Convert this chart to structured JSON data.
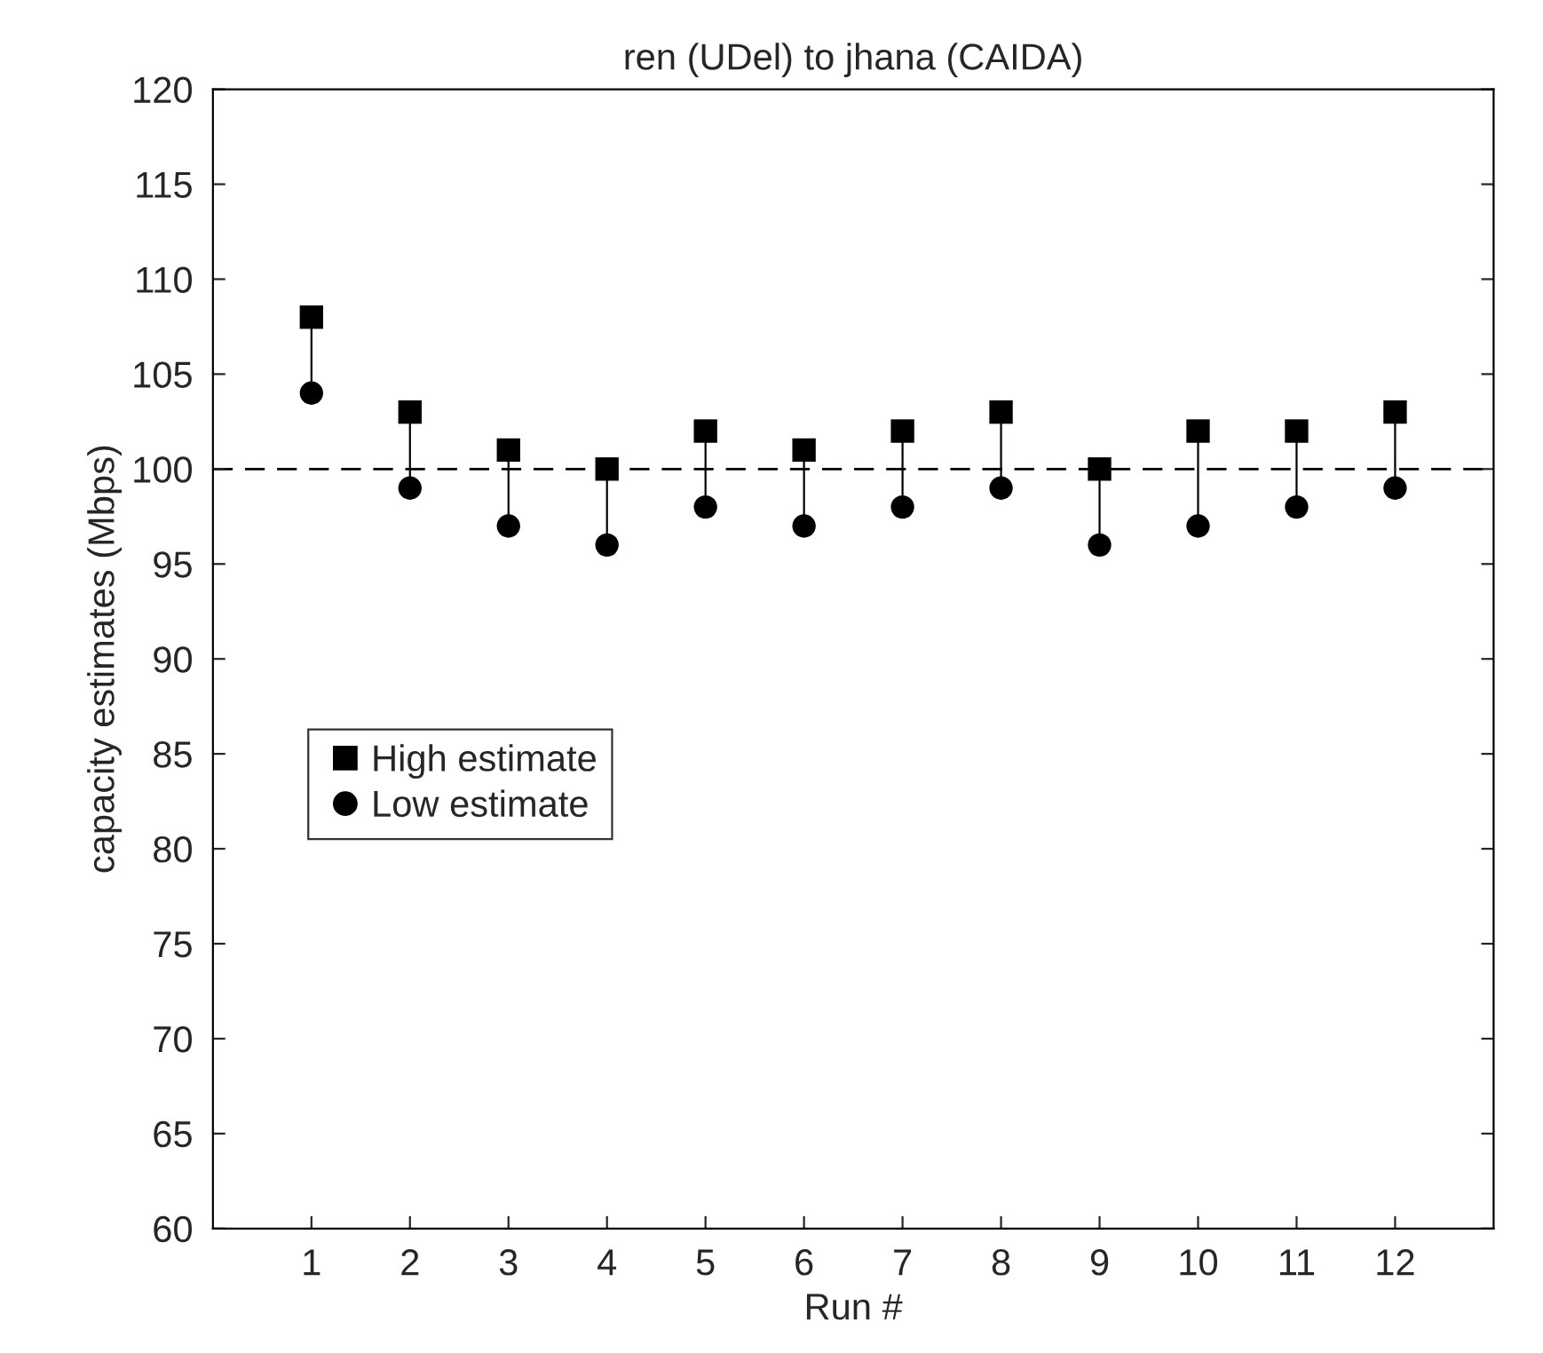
{
  "chart_data": {
    "type": "scatter",
    "title": "ren (UDel) to jhana (CAIDA)",
    "xlabel": "Run #",
    "ylabel": "capacity estimates (Mbps)",
    "categories": [
      "1",
      "2",
      "3",
      "4",
      "5",
      "6",
      "7",
      "8",
      "9",
      "10",
      "11",
      "12"
    ],
    "series": [
      {
        "name": "High estimate",
        "color": "#000000",
        "marker": "square",
        "values": [
          108,
          103,
          101,
          100,
          102,
          101,
          102,
          103,
          100,
          102,
          102,
          103
        ]
      },
      {
        "name": "Low estimate",
        "color": "#000000",
        "marker": "circle",
        "values": [
          104,
          99,
          97,
          96,
          98,
          97,
          98,
          99,
          96,
          97,
          98,
          99
        ]
      }
    ],
    "ylim": [
      60,
      120
    ],
    "yticks": [
      60,
      65,
      70,
      75,
      80,
      85,
      90,
      95,
      100,
      105,
      110,
      115,
      120
    ],
    "ref_lines": [
      {
        "axis": "y",
        "value": 100,
        "line_style": "dashed",
        "color": "#000000"
      }
    ],
    "legend": "left",
    "grid": false
  }
}
